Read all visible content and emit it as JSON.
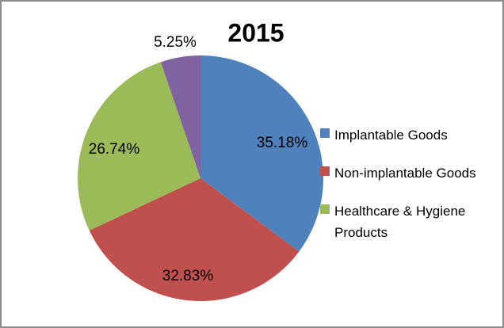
{
  "chart_data": {
    "type": "pie",
    "title": "2015",
    "start_angle_deg": 0,
    "direction": "clockwise",
    "legend_position": "right",
    "background_color": "#ffffff",
    "border_color": "#8c8c8c",
    "slices": [
      {
        "name": "Implantable Goods",
        "value_pct": 35.18,
        "data_label": "35.18%",
        "color": "#4F81BD",
        "label_placement": "inside"
      },
      {
        "name": "Non-implantable Goods",
        "value_pct": 32.83,
        "data_label": "32.83%",
        "color": "#C0504D",
        "label_placement": "inside"
      },
      {
        "name": "Healthcare & Hygiene Products",
        "value_pct": 26.74,
        "data_label": "26.74%",
        "color": "#9BBB59",
        "label_placement": "inside"
      },
      {
        "value_pct": 5.25,
        "data_label": "5.25%",
        "color": "#8064A2",
        "label_placement": "outside"
      }
    ],
    "legend_entries": [
      {
        "label": "Implantable Goods",
        "color": "#4F81BD"
      },
      {
        "label": "Non-implantable Goods",
        "color": "#C0504D"
      },
      {
        "label": "Healthcare & Hygiene Products",
        "color": "#9BBB59"
      }
    ]
  }
}
